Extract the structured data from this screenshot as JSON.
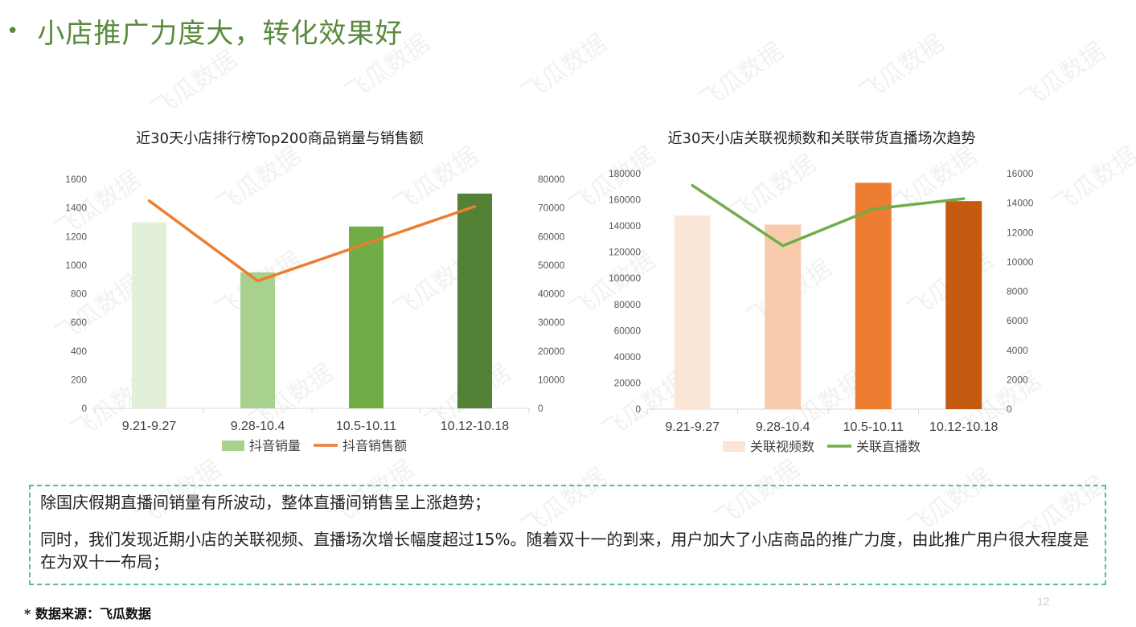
{
  "headline": "小店推广力度大，转化效果好",
  "watermark_text": "飞瓜数据",
  "chart_data": [
    {
      "type": "bar",
      "title": "近30天小店排行榜Top200商品销量与销售额",
      "categories": [
        "9.21-9.27",
        "9.28-10.4",
        "10.5-10.11",
        "10.12-10.18"
      ],
      "series": [
        {
          "name": "抖音销量",
          "type": "bar",
          "axis": "left",
          "values": [
            1300,
            950,
            1270,
            1500
          ],
          "colors": [
            "#e2efd9",
            "#a9d18e",
            "#70ad47",
            "#538135"
          ],
          "legend_color": "#a9d18e"
        },
        {
          "name": "抖音销售额",
          "type": "line",
          "axis": "right",
          "values": [
            72500,
            44500,
            57500,
            70500
          ],
          "color": "#ed7d31"
        }
      ],
      "ylim_left": [
        0,
        1600
      ],
      "yticks_left": [
        "0",
        "200",
        "400",
        "600",
        "800",
        "1000",
        "1200",
        "1400",
        "1600"
      ],
      "ylim_right": [
        0,
        80000
      ],
      "yticks_right": [
        "0",
        "10000",
        "20000",
        "30000",
        "40000",
        "50000",
        "60000",
        "70000",
        "80000"
      ],
      "legend": "bottom",
      "grid": false
    },
    {
      "type": "bar",
      "title": "近30天小店关联视频数和关联带货直播场次趋势",
      "categories": [
        "9.21-9.27",
        "9.28-10.4",
        "10.5-10.11",
        "10.12-10.18"
      ],
      "series": [
        {
          "name": "关联视频数",
          "type": "bar",
          "axis": "left",
          "values": [
            148000,
            141000,
            173000,
            159000
          ],
          "colors": [
            "#fbe5d6",
            "#f8cbad",
            "#ed7d31",
            "#c55a11"
          ],
          "legend_color": "#fbe5d6"
        },
        {
          "name": "关联直播数",
          "type": "line",
          "axis": "right",
          "values": [
            15200,
            11100,
            13600,
            14300
          ],
          "color": "#70ad47"
        }
      ],
      "ylim_left": [
        0,
        180000
      ],
      "yticks_left": [
        "0",
        "20000",
        "40000",
        "60000",
        "80000",
        "100000",
        "120000",
        "140000",
        "160000",
        "180000"
      ],
      "ylim_right": [
        0,
        16000
      ],
      "yticks_right": [
        "0",
        "2000",
        "4000",
        "6000",
        "8000",
        "10000",
        "12000",
        "14000",
        "16000"
      ],
      "legend": "bottom",
      "grid": false
    }
  ],
  "summary": {
    "line1": "除国庆假期直播间销量有所波动，整体直播间销售呈上涨趋势；",
    "line2": "同时，我们发现近期小店的关联视频、直播场次增长幅度超过15%。随着双十一的到来，用户加大了小店商品的推广力度，由此推广用户很大程度是在为双十一布局；"
  },
  "footnote": "* 数据来源：飞瓜数据",
  "page_number": "12"
}
